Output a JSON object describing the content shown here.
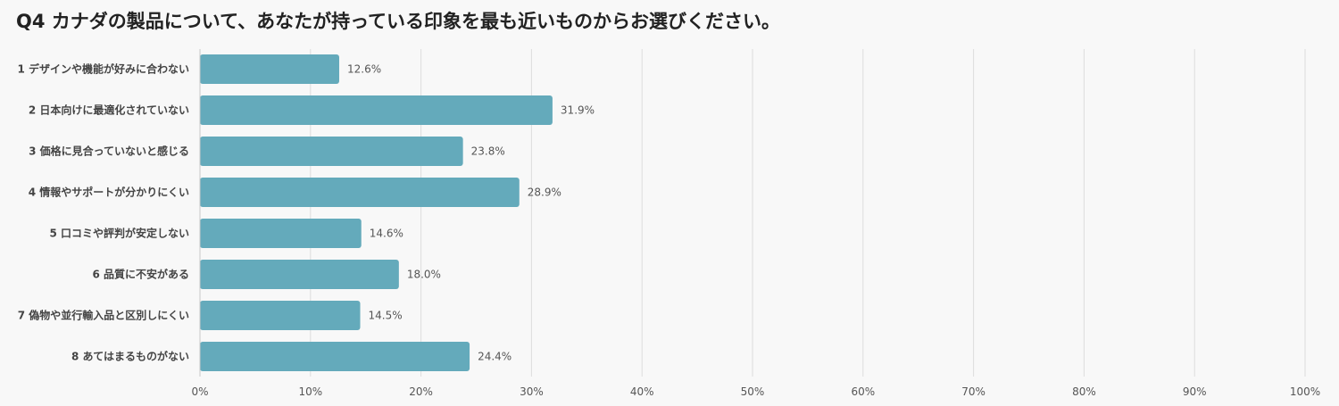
{
  "chart_data": {
    "type": "bar",
    "orientation": "horizontal",
    "title": "Q4 カナダの製品について、あなたが持っている印象を最も近いものからお選びください。",
    "categories": [
      "1 デザインや機能が好みに合わない",
      "2 日本向けに最適化されていない",
      "3 価格に見合っていないと感じる",
      "4 情報やサポートが分かりにくい",
      "5 口コミや評判が安定しない",
      "6 品質に不安がある",
      "7 偽物や並行輸入品と区別しにくい",
      "8 あてはまるものがない"
    ],
    "values": [
      12.6,
      31.9,
      23.8,
      28.9,
      14.6,
      18.0,
      14.5,
      24.4
    ],
    "value_labels": [
      "12.6%",
      "31.9%",
      "23.8%",
      "28.9%",
      "14.6%",
      "18.0%",
      "14.5%",
      "24.4%"
    ],
    "xlim": [
      0,
      100
    ],
    "ticks": [
      "0%",
      "10%",
      "20%",
      "30%",
      "40%",
      "50%",
      "60%",
      "70%",
      "80%",
      "90%",
      "100%"
    ],
    "grid": true,
    "colors": {
      "bar": "#64aabb",
      "grid": "#dddddd",
      "background": "#f8f8f8"
    }
  }
}
